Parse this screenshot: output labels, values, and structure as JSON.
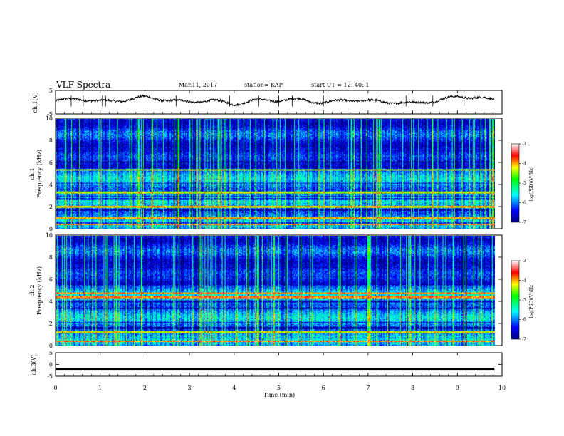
{
  "header": {
    "title": "VLF Spectra",
    "date": "Mar.11, 2017",
    "station": "station= KAP",
    "start": "start  UT  =   12: 40: 1"
  },
  "chart_data": [
    {
      "type": "line",
      "name": "ch1-waveform",
      "ylabel": "ch.1(V)",
      "ylim": [
        -5,
        5
      ],
      "yticks": [
        "5",
        "-5"
      ],
      "x_range": [
        0,
        9.83
      ],
      "xlim": [
        0,
        10
      ],
      "profile_x": [
        0,
        0.5,
        1,
        1.5,
        2,
        2.5,
        3,
        3.5,
        4,
        4.5,
        5,
        5.5,
        6,
        6.5,
        7,
        7.5,
        8,
        8.5,
        9,
        9.5,
        9.83
      ],
      "profile_y": [
        0.5,
        1.6,
        0.3,
        0.8,
        2.2,
        0.9,
        0.1,
        0.8,
        -0.8,
        0.9,
        0.8,
        1.2,
        -0.4,
        1.0,
        0.6,
        0.0,
        -0.4,
        0.6,
        2.4,
        2.0,
        0.7
      ]
    },
    {
      "type": "heatmap",
      "name": "ch1-spectrogram",
      "ylabel_line1": "ch.1",
      "ylabel_line2": "Frequency (kHz)",
      "ylim": [
        0,
        10
      ],
      "yticks": [
        "0",
        "2",
        "4",
        "6",
        "8",
        "10"
      ],
      "time_range": [
        0,
        9.83
      ],
      "colorbar": {
        "label": "log(PSD)(V²/Hz)",
        "range": [
          -7,
          -3
        ],
        "ticks": [
          "-3",
          "-4",
          "-5",
          "-6",
          "-7"
        ]
      },
      "bands_khz": [
        [
          0.3,
          0.4
        ],
        [
          0.85,
          1.0
        ],
        [
          1.9,
          2.1
        ],
        [
          3.2,
          3.4
        ],
        [
          5.3,
          5.4
        ]
      ],
      "dark_khz": [
        [
          0.45,
          0.55
        ],
        [
          1.6,
          1.75
        ],
        [
          2.6,
          2.8
        ],
        [
          2.9,
          3.0
        ],
        [
          4.1,
          4.2
        ],
        [
          6.0,
          6.15
        ]
      ]
    },
    {
      "type": "heatmap",
      "name": "ch2-spectrogram",
      "ylabel_line1": "ch.2",
      "ylabel_line2": "Frequency (kHz)",
      "ylim": [
        0,
        10
      ],
      "yticks": [
        "0",
        "2",
        "4",
        "6",
        "8",
        "10"
      ],
      "time_range": [
        0,
        9.83
      ],
      "colorbar": {
        "label": "log(PSD)(V²/Hz)",
        "range": [
          -7,
          -3
        ],
        "ticks": [
          "-3",
          "-4",
          "-5",
          "-6",
          "-7"
        ]
      },
      "bands_khz": [
        [
          0.3,
          0.4
        ],
        [
          1.1,
          1.25
        ],
        [
          4.3,
          4.5
        ],
        [
          4.7,
          4.85
        ]
      ],
      "dark_khz": [
        [
          0.6,
          0.7
        ],
        [
          1.5,
          1.65
        ],
        [
          2.05,
          2.15
        ],
        [
          3.3,
          3.45
        ],
        [
          3.9,
          4.1
        ]
      ]
    },
    {
      "type": "line",
      "name": "ch3-waveform",
      "ylabel": "ch.3(V)",
      "ylim": [
        -5,
        5
      ],
      "yticks": [
        "5",
        "0",
        "-5"
      ],
      "x_range": [
        0,
        9.83
      ],
      "y_value": -2
    }
  ],
  "xaxis": {
    "label": "Time (min)",
    "ticks": [
      "0",
      "1",
      "2",
      "3",
      "4",
      "5",
      "6",
      "7",
      "8",
      "9",
      "10"
    ],
    "xlim": [
      0,
      10
    ]
  }
}
